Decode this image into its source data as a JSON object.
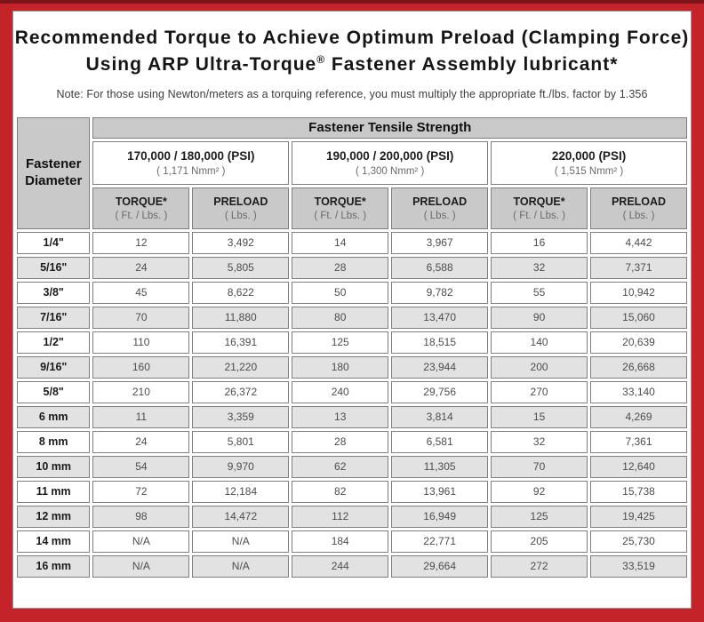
{
  "header": {
    "title_line1": "Recommended Torque to Achieve Optimum Preload (Clamping Force)",
    "title2_pre": "Using ARP Ultra-Torque",
    "title2_reg": "®",
    "title2_post": " Fastener Assembly lubricant*",
    "note": "Note: For those using Newton/meters as a torquing reference, you must multiply the appropriate ft./lbs. factor by 1.356"
  },
  "table": {
    "corner_header": "Fastener Diameter",
    "tensile_header": "Fastener Tensile Strength",
    "groups": [
      {
        "psi": "170,000 / 180,000 (PSI)",
        "nmm": "( 1,171 Nmm² )"
      },
      {
        "psi": "190,000 / 200,000 (PSI)",
        "nmm": "( 1,300 Nmm² )"
      },
      {
        "psi": "220,000 (PSI)",
        "nmm": "( 1,515 Nmm² )"
      }
    ],
    "col_headers": [
      {
        "label": "TORQUE*",
        "sub": "( Ft. / Lbs. )"
      },
      {
        "label": "PRELOAD",
        "sub": "( Lbs. )"
      },
      {
        "label": "TORQUE*",
        "sub": "( Ft. / Lbs. )"
      },
      {
        "label": "PRELOAD",
        "sub": "( Lbs. )"
      },
      {
        "label": "TORQUE*",
        "sub": "( Ft. / Lbs. )"
      },
      {
        "label": "PRELOAD",
        "sub": "( Lbs. )"
      }
    ],
    "rows": [
      {
        "diameter": "1/4\"",
        "values": [
          "12",
          "3,492",
          "14",
          "3,967",
          "16",
          "4,442"
        ]
      },
      {
        "diameter": "5/16\"",
        "values": [
          "24",
          "5,805",
          "28",
          "6,588",
          "32",
          "7,371"
        ]
      },
      {
        "diameter": "3/8\"",
        "values": [
          "45",
          "8,622",
          "50",
          "9,782",
          "55",
          "10,942"
        ]
      },
      {
        "diameter": "7/16\"",
        "values": [
          "70",
          "11,880",
          "80",
          "13,470",
          "90",
          "15,060"
        ]
      },
      {
        "diameter": "1/2\"",
        "values": [
          "110",
          "16,391",
          "125",
          "18,515",
          "140",
          "20,639"
        ]
      },
      {
        "diameter": "9/16\"",
        "values": [
          "160",
          "21,220",
          "180",
          "23,944",
          "200",
          "26,668"
        ]
      },
      {
        "diameter": "5/8\"",
        "values": [
          "210",
          "26,372",
          "240",
          "29,756",
          "270",
          "33,140"
        ]
      },
      {
        "diameter": "6 mm",
        "values": [
          "11",
          "3,359",
          "13",
          "3,814",
          "15",
          "4,269"
        ]
      },
      {
        "diameter": "8 mm",
        "values": [
          "24",
          "5,801",
          "28",
          "6,581",
          "32",
          "7,361"
        ]
      },
      {
        "diameter": "10 mm",
        "values": [
          "54",
          "9,970",
          "62",
          "11,305",
          "70",
          "12,640"
        ]
      },
      {
        "diameter": "11 mm",
        "values": [
          "72",
          "12,184",
          "82",
          "13,961",
          "92",
          "15,738"
        ]
      },
      {
        "diameter": "12 mm",
        "values": [
          "98",
          "14,472",
          "112",
          "16,949",
          "125",
          "19,425"
        ]
      },
      {
        "diameter": "14 mm",
        "values": [
          "N/A",
          "N/A",
          "184",
          "22,771",
          "205",
          "25,730"
        ]
      },
      {
        "diameter": "16 mm",
        "values": [
          "N/A",
          "N/A",
          "244",
          "29,664",
          "272",
          "33,519"
        ]
      }
    ]
  },
  "colors": {
    "border_red": "#c4232a",
    "border_dark_red": "#7c151a",
    "header_gray": "#c9c9c9",
    "row_alt_gray": "#e2e2e2",
    "cell_border": "#7e7e7e"
  }
}
